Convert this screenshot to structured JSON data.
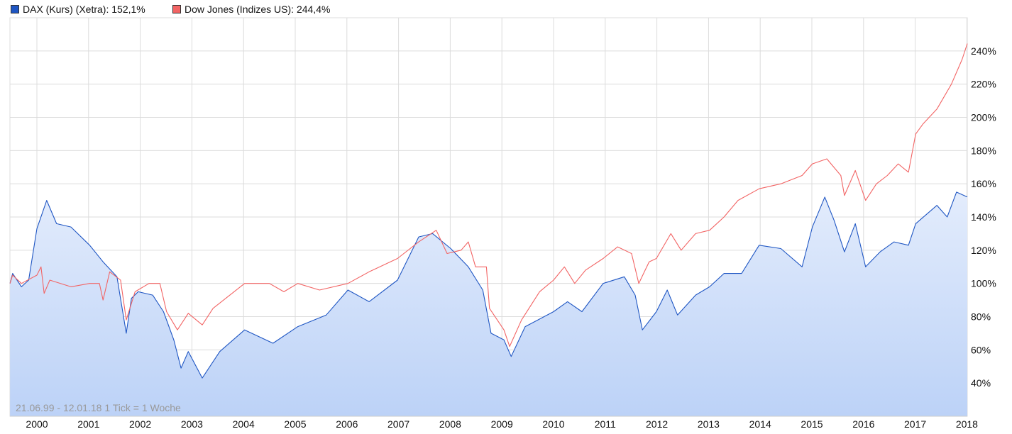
{
  "chart_data": {
    "type": "line",
    "title": "",
    "xlabel": "",
    "ylabel": "",
    "period_note": "21.06.99 - 12.01.18   1 Tick = 1 Woche",
    "xlim": [
      1999.47,
      2018.03
    ],
    "ylim": [
      20,
      260
    ],
    "x_ticks": [
      "2000",
      "2001",
      "2002",
      "2003",
      "2004",
      "2005",
      "2006",
      "2007",
      "2008",
      "2009",
      "2010",
      "2011",
      "2012",
      "2013",
      "2014",
      "2015",
      "2016",
      "2017",
      "2018"
    ],
    "y_ticks": [
      40,
      60,
      80,
      100,
      120,
      140,
      160,
      180,
      200,
      220,
      240
    ],
    "y_tick_labels": [
      "40%",
      "60%",
      "80%",
      "100%",
      "120%",
      "140%",
      "160%",
      "180%",
      "200%",
      "220%",
      "240%"
    ],
    "grid": true,
    "legend_position": "top-left",
    "series": [
      {
        "name": "DAX (Kurs) (Xetra)",
        "legend_label": "DAX (Kurs) (Xetra): 152,1%",
        "color": "#1f56c3",
        "fill": true,
        "points": [
          [
            1999.48,
            100
          ],
          [
            1999.53,
            106
          ],
          [
            1999.7,
            98
          ],
          [
            1999.84,
            102
          ],
          [
            2000.0,
            133
          ],
          [
            2000.19,
            150
          ],
          [
            2000.38,
            136
          ],
          [
            2000.66,
            134
          ],
          [
            2001.02,
            123
          ],
          [
            2001.28,
            113
          ],
          [
            2001.55,
            104
          ],
          [
            2001.73,
            70
          ],
          [
            2001.83,
            91
          ],
          [
            2001.96,
            95
          ],
          [
            2002.24,
            93
          ],
          [
            2002.45,
            83
          ],
          [
            2002.65,
            66
          ],
          [
            2002.79,
            49
          ],
          [
            2002.93,
            59
          ],
          [
            2003.2,
            43
          ],
          [
            2003.54,
            59
          ],
          [
            2004.02,
            72
          ],
          [
            2004.57,
            64
          ],
          [
            2005.05,
            74
          ],
          [
            2005.6,
            81
          ],
          [
            2006.02,
            96
          ],
          [
            2006.43,
            89
          ],
          [
            2006.98,
            102
          ],
          [
            2007.39,
            128
          ],
          [
            2007.66,
            130
          ],
          [
            2008.01,
            121
          ],
          [
            2008.35,
            110
          ],
          [
            2008.63,
            96
          ],
          [
            2008.79,
            70
          ],
          [
            2009.04,
            66
          ],
          [
            2009.18,
            56
          ],
          [
            2009.45,
            74
          ],
          [
            2010.0,
            83
          ],
          [
            2010.27,
            89
          ],
          [
            2010.55,
            83
          ],
          [
            2010.96,
            100
          ],
          [
            2011.37,
            104
          ],
          [
            2011.58,
            93
          ],
          [
            2011.72,
            72
          ],
          [
            2011.99,
            83
          ],
          [
            2012.2,
            96
          ],
          [
            2012.4,
            81
          ],
          [
            2012.75,
            93
          ],
          [
            2013.02,
            98
          ],
          [
            2013.3,
            106
          ],
          [
            2013.64,
            106
          ],
          [
            2013.98,
            123
          ],
          [
            2014.4,
            121
          ],
          [
            2014.81,
            110
          ],
          [
            2015.01,
            134
          ],
          [
            2015.25,
            152
          ],
          [
            2015.43,
            138
          ],
          [
            2015.63,
            119
          ],
          [
            2015.84,
            136
          ],
          [
            2016.04,
            110
          ],
          [
            2016.32,
            119
          ],
          [
            2016.59,
            125
          ],
          [
            2016.87,
            123
          ],
          [
            2017.01,
            136
          ],
          [
            2017.42,
            147
          ],
          [
            2017.62,
            140
          ],
          [
            2017.8,
            155
          ],
          [
            2018.03,
            152.1
          ]
        ]
      },
      {
        "name": "Dow Jones (Indizes US)",
        "legend_label": "Dow Jones (Indizes US): 244,4%",
        "color": "#f26464",
        "fill": false,
        "points": [
          [
            1999.48,
            100
          ],
          [
            1999.53,
            105
          ],
          [
            1999.7,
            100
          ],
          [
            2000.0,
            105
          ],
          [
            2000.08,
            110
          ],
          [
            2000.14,
            94
          ],
          [
            2000.25,
            102
          ],
          [
            2000.66,
            98
          ],
          [
            2001.02,
            100
          ],
          [
            2001.21,
            100
          ],
          [
            2001.28,
            90
          ],
          [
            2001.41,
            107
          ],
          [
            2001.62,
            102
          ],
          [
            2001.73,
            78
          ],
          [
            2001.9,
            95
          ],
          [
            2002.17,
            100
          ],
          [
            2002.38,
            100
          ],
          [
            2002.51,
            83
          ],
          [
            2002.72,
            72
          ],
          [
            2002.93,
            82
          ],
          [
            2003.2,
            75
          ],
          [
            2003.41,
            85
          ],
          [
            2004.02,
            100
          ],
          [
            2004.5,
            100
          ],
          [
            2004.78,
            95
          ],
          [
            2005.05,
            100
          ],
          [
            2005.47,
            96
          ],
          [
            2006.02,
            100
          ],
          [
            2006.43,
            107
          ],
          [
            2006.98,
            115
          ],
          [
            2007.39,
            125
          ],
          [
            2007.73,
            132
          ],
          [
            2007.94,
            118
          ],
          [
            2008.21,
            120
          ],
          [
            2008.35,
            125
          ],
          [
            2008.49,
            110
          ],
          [
            2008.7,
            110
          ],
          [
            2008.76,
            85
          ],
          [
            2009.04,
            72
          ],
          [
            2009.15,
            62
          ],
          [
            2009.38,
            78
          ],
          [
            2009.73,
            95
          ],
          [
            2010.0,
            102
          ],
          [
            2010.21,
            110
          ],
          [
            2010.41,
            100
          ],
          [
            2010.62,
            108
          ],
          [
            2010.96,
            115
          ],
          [
            2011.24,
            122
          ],
          [
            2011.51,
            118
          ],
          [
            2011.65,
            100
          ],
          [
            2011.85,
            113
          ],
          [
            2011.99,
            115
          ],
          [
            2012.27,
            130
          ],
          [
            2012.47,
            120
          ],
          [
            2012.75,
            130
          ],
          [
            2013.02,
            132
          ],
          [
            2013.3,
            140
          ],
          [
            2013.57,
            150
          ],
          [
            2013.98,
            157
          ],
          [
            2014.4,
            160
          ],
          [
            2014.81,
            165
          ],
          [
            2015.01,
            172
          ],
          [
            2015.29,
            175
          ],
          [
            2015.56,
            165
          ],
          [
            2015.63,
            153
          ],
          [
            2015.84,
            168
          ],
          [
            2016.04,
            150
          ],
          [
            2016.25,
            160
          ],
          [
            2016.46,
            165
          ],
          [
            2016.67,
            172
          ],
          [
            2016.87,
            167
          ],
          [
            2017.01,
            190
          ],
          [
            2017.15,
            196
          ],
          [
            2017.42,
            205
          ],
          [
            2017.7,
            220
          ],
          [
            2017.91,
            235
          ],
          [
            2018.03,
            244.4
          ]
        ]
      }
    ]
  }
}
